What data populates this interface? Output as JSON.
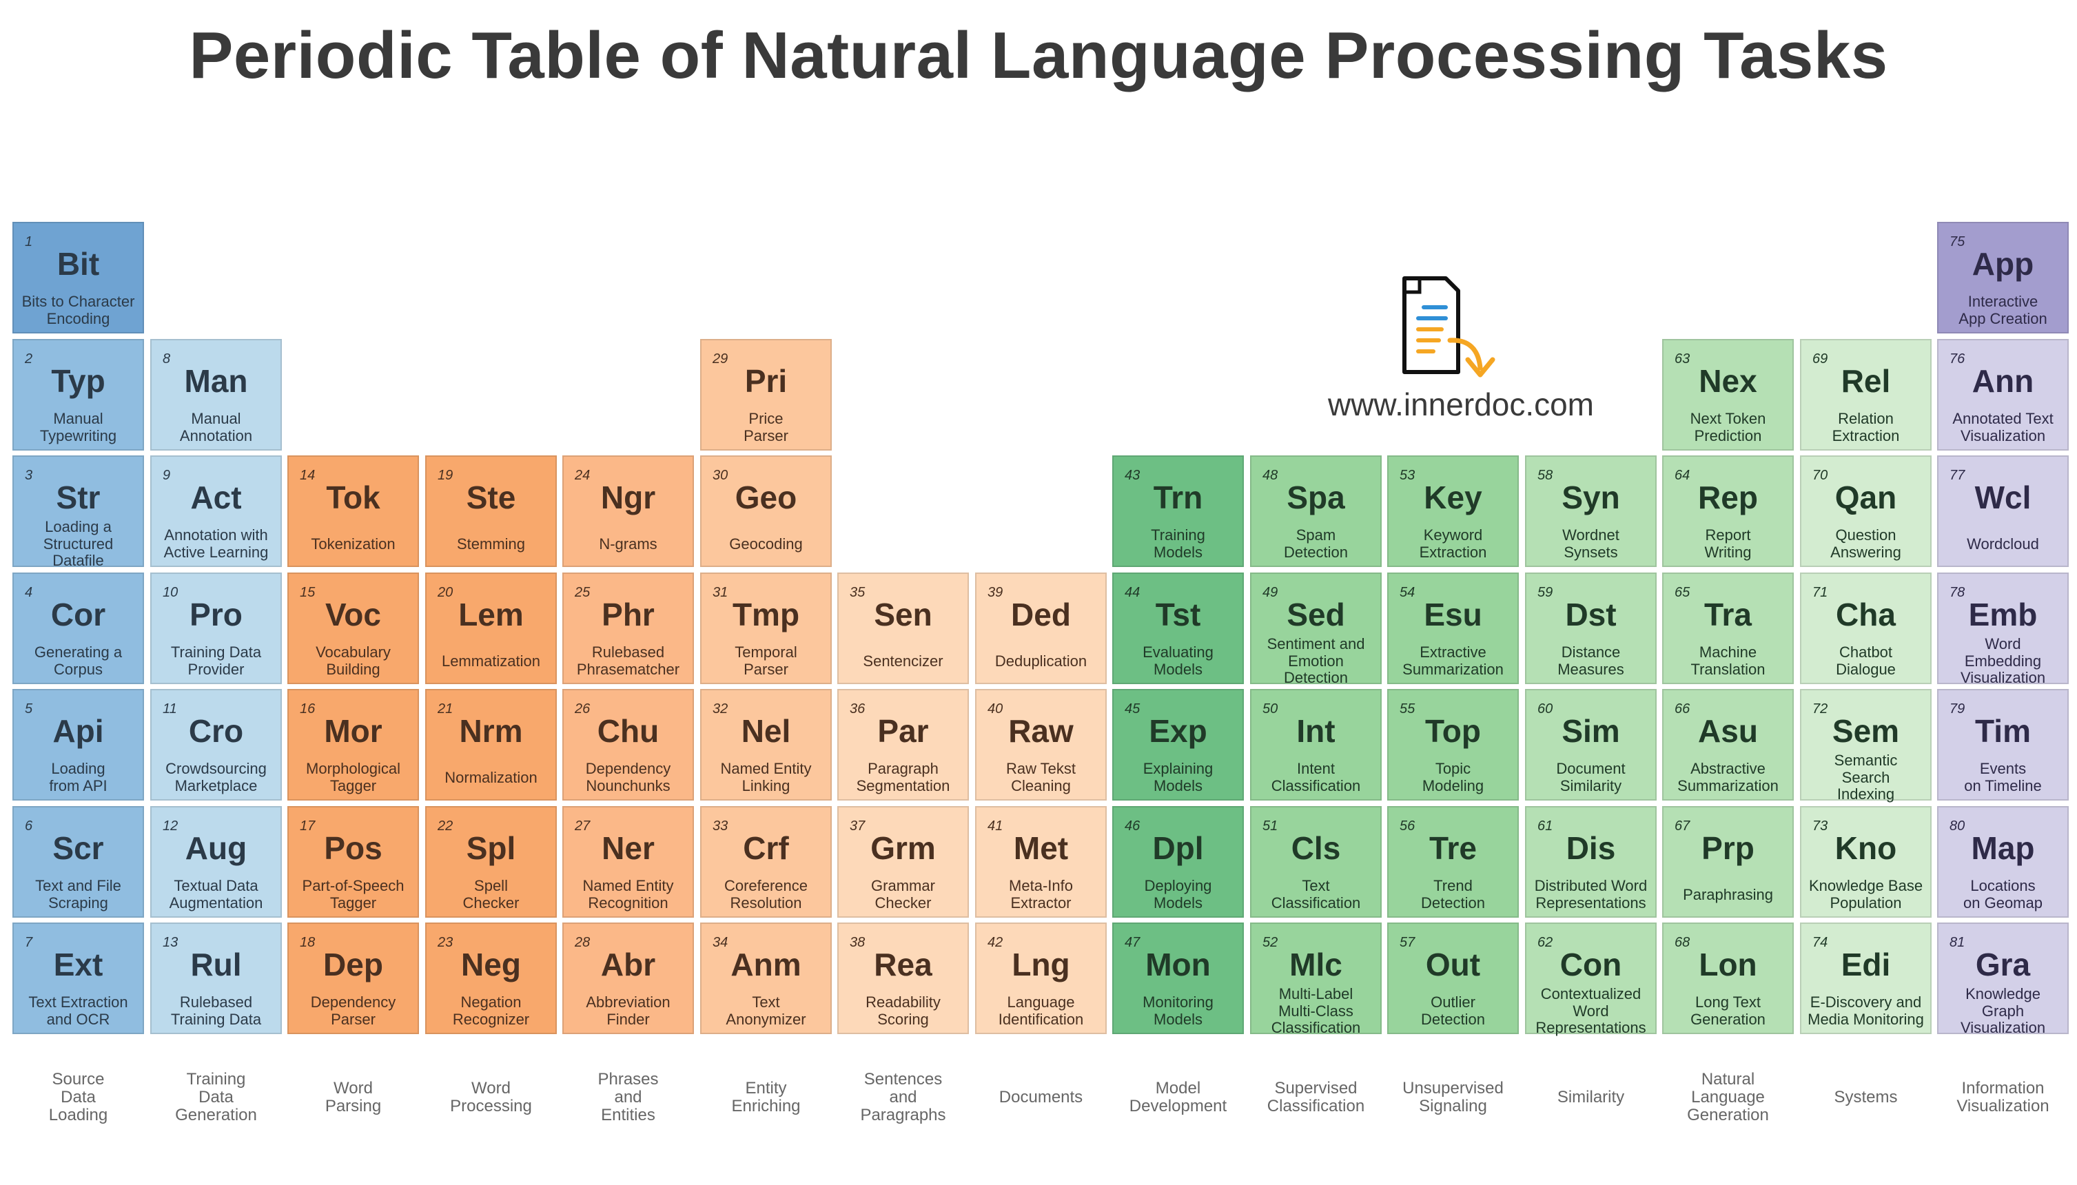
{
  "title": "Periodic Table of Natural Language Processing Tasks",
  "website": "www.innerdoc.com",
  "groups": [
    {
      "label": "Source\nData\nLoading"
    },
    {
      "label": "Training\nData\nGeneration"
    },
    {
      "label": "Word\nParsing"
    },
    {
      "label": "Word\nProcessing"
    },
    {
      "label": "Phrases\nand\nEntities"
    },
    {
      "label": "Entity\nEnriching"
    },
    {
      "label": "Sentences\nand\nParagraphs"
    },
    {
      "label": "Documents"
    },
    {
      "label": "Model\nDevelopment"
    },
    {
      "label": "Supervised\nClassification"
    },
    {
      "label": "Unsupervised\nSignaling"
    },
    {
      "label": "Similarity"
    },
    {
      "label": "Natural\nLanguage\nGeneration"
    },
    {
      "label": "Systems"
    },
    {
      "label": "Information\nVisualization"
    }
  ],
  "elements": [
    {
      "num": "1",
      "sym": "Bit",
      "name": "Bits to Character\nEncoding",
      "col": 0,
      "row": 0,
      "bg": "#6fa3d2",
      "fg": "#2b3a48"
    },
    {
      "num": "2",
      "sym": "Typ",
      "name": "Manual\nTypewriting",
      "col": 0,
      "row": 1,
      "bg": "#90bde0",
      "fg": "#2b3a48"
    },
    {
      "num": "3",
      "sym": "Str",
      "name": "Loading a\nStructured\nDatafile",
      "col": 0,
      "row": 2,
      "bg": "#90bde0",
      "fg": "#2b3a48"
    },
    {
      "num": "4",
      "sym": "Cor",
      "name": "Generating a\nCorpus",
      "col": 0,
      "row": 3,
      "bg": "#90bde0",
      "fg": "#2b3a48"
    },
    {
      "num": "5",
      "sym": "Api",
      "name": "Loading\nfrom API",
      "col": 0,
      "row": 4,
      "bg": "#90bde0",
      "fg": "#2b3a48"
    },
    {
      "num": "6",
      "sym": "Scr",
      "name": "Text and File\nScraping",
      "col": 0,
      "row": 5,
      "bg": "#90bde0",
      "fg": "#2b3a48"
    },
    {
      "num": "7",
      "sym": "Ext",
      "name": "Text Extraction\nand OCR",
      "col": 0,
      "row": 6,
      "bg": "#90bde0",
      "fg": "#2b3a48"
    },
    {
      "num": "8",
      "sym": "Man",
      "name": "Manual\nAnnotation",
      "col": 1,
      "row": 1,
      "bg": "#bcdaec",
      "fg": "#2b3a48"
    },
    {
      "num": "9",
      "sym": "Act",
      "name": "Annotation with\nActive Learning",
      "col": 1,
      "row": 2,
      "bg": "#bcdaec",
      "fg": "#2b3a48"
    },
    {
      "num": "10",
      "sym": "Pro",
      "name": "Training Data\nProvider",
      "col": 1,
      "row": 3,
      "bg": "#bcdaec",
      "fg": "#2b3a48"
    },
    {
      "num": "11",
      "sym": "Cro",
      "name": "Crowdsourcing\nMarketplace",
      "col": 1,
      "row": 4,
      "bg": "#bcdaec",
      "fg": "#2b3a48"
    },
    {
      "num": "12",
      "sym": "Aug",
      "name": "Textual Data\nAugmentation",
      "col": 1,
      "row": 5,
      "bg": "#bcdaec",
      "fg": "#2b3a48"
    },
    {
      "num": "13",
      "sym": "Rul",
      "name": "Rulebased\nTraining Data",
      "col": 1,
      "row": 6,
      "bg": "#bcdaec",
      "fg": "#2b3a48"
    },
    {
      "num": "14",
      "sym": "Tok",
      "name": "Tokenization",
      "col": 2,
      "row": 2,
      "bg": "#f8a86c",
      "fg": "#4a3020"
    },
    {
      "num": "15",
      "sym": "Voc",
      "name": "Vocabulary\nBuilding",
      "col": 2,
      "row": 3,
      "bg": "#f8a86c",
      "fg": "#4a3020"
    },
    {
      "num": "16",
      "sym": "Mor",
      "name": "Morphological\nTagger",
      "col": 2,
      "row": 4,
      "bg": "#f8a86c",
      "fg": "#4a3020"
    },
    {
      "num": "17",
      "sym": "Pos",
      "name": "Part-of-Speech\nTagger",
      "col": 2,
      "row": 5,
      "bg": "#f8a86c",
      "fg": "#4a3020"
    },
    {
      "num": "18",
      "sym": "Dep",
      "name": "Dependency\nParser",
      "col": 2,
      "row": 6,
      "bg": "#f8a86c",
      "fg": "#4a3020"
    },
    {
      "num": "19",
      "sym": "Ste",
      "name": "Stemming",
      "col": 3,
      "row": 2,
      "bg": "#f8a86c",
      "fg": "#4a3020"
    },
    {
      "num": "20",
      "sym": "Lem",
      "name": "Lemmatization",
      "col": 3,
      "row": 3,
      "bg": "#f8a86c",
      "fg": "#4a3020"
    },
    {
      "num": "21",
      "sym": "Nrm",
      "name": "Normalization",
      "col": 3,
      "row": 4,
      "bg": "#f8a86c",
      "fg": "#4a3020"
    },
    {
      "num": "22",
      "sym": "Spl",
      "name": "Spell\nChecker",
      "col": 3,
      "row": 5,
      "bg": "#f8a86c",
      "fg": "#4a3020"
    },
    {
      "num": "23",
      "sym": "Neg",
      "name": "Negation\nRecognizer",
      "col": 3,
      "row": 6,
      "bg": "#f8a86c",
      "fg": "#4a3020"
    },
    {
      "num": "24",
      "sym": "Ngr",
      "name": "N-grams",
      "col": 4,
      "row": 2,
      "bg": "#fbb888",
      "fg": "#4a3020"
    },
    {
      "num": "25",
      "sym": "Phr",
      "name": "Rulebased\nPhrasematcher",
      "col": 4,
      "row": 3,
      "bg": "#fbb888",
      "fg": "#4a3020"
    },
    {
      "num": "26",
      "sym": "Chu",
      "name": "Dependency\nNounchunks",
      "col": 4,
      "row": 4,
      "bg": "#fbb888",
      "fg": "#4a3020"
    },
    {
      "num": "27",
      "sym": "Ner",
      "name": "Named Entity\nRecognition",
      "col": 4,
      "row": 5,
      "bg": "#fbb888",
      "fg": "#4a3020"
    },
    {
      "num": "28",
      "sym": "Abr",
      "name": "Abbreviation\nFinder",
      "col": 4,
      "row": 6,
      "bg": "#fbb888",
      "fg": "#4a3020"
    },
    {
      "num": "29",
      "sym": "Pri",
      "name": "Price\nParser",
      "col": 5,
      "row": 1,
      "bg": "#fcc79d",
      "fg": "#4a3020"
    },
    {
      "num": "30",
      "sym": "Geo",
      "name": "Geocoding",
      "col": 5,
      "row": 2,
      "bg": "#fcc79d",
      "fg": "#4a3020"
    },
    {
      "num": "31",
      "sym": "Tmp",
      "name": "Temporal\nParser",
      "col": 5,
      "row": 3,
      "bg": "#fcc79d",
      "fg": "#4a3020"
    },
    {
      "num": "32",
      "sym": "Nel",
      "name": "Named Entity\nLinking",
      "col": 5,
      "row": 4,
      "bg": "#fcc79d",
      "fg": "#4a3020"
    },
    {
      "num": "33",
      "sym": "Crf",
      "name": "Coreference\nResolution",
      "col": 5,
      "row": 5,
      "bg": "#fcc79d",
      "fg": "#4a3020"
    },
    {
      "num": "34",
      "sym": "Anm",
      "name": "Text\nAnonymizer",
      "col": 5,
      "row": 6,
      "bg": "#fcc79d",
      "fg": "#4a3020"
    },
    {
      "num": "35",
      "sym": "Sen",
      "name": "Sentencizer",
      "col": 6,
      "row": 3,
      "bg": "#fdd9b9",
      "fg": "#4a3020"
    },
    {
      "num": "36",
      "sym": "Par",
      "name": "Paragraph\nSegmentation",
      "col": 6,
      "row": 4,
      "bg": "#fdd9b9",
      "fg": "#4a3020"
    },
    {
      "num": "37",
      "sym": "Grm",
      "name": "Grammar\nChecker",
      "col": 6,
      "row": 5,
      "bg": "#fdd9b9",
      "fg": "#4a3020"
    },
    {
      "num": "38",
      "sym": "Rea",
      "name": "Readability\nScoring",
      "col": 6,
      "row": 6,
      "bg": "#fdd9b9",
      "fg": "#4a3020"
    },
    {
      "num": "39",
      "sym": "Ded",
      "name": "Deduplication",
      "col": 7,
      "row": 3,
      "bg": "#fdd9b9",
      "fg": "#4a3020"
    },
    {
      "num": "40",
      "sym": "Raw",
      "name": "Raw Tekst\nCleaning",
      "col": 7,
      "row": 4,
      "bg": "#fdd9b9",
      "fg": "#4a3020"
    },
    {
      "num": "41",
      "sym": "Met",
      "name": "Meta-Info\nExtractor",
      "col": 7,
      "row": 5,
      "bg": "#fdd9b9",
      "fg": "#4a3020"
    },
    {
      "num": "42",
      "sym": "Lng",
      "name": "Language\nIdentification",
      "col": 7,
      "row": 6,
      "bg": "#fdd9b9",
      "fg": "#4a3020"
    },
    {
      "num": "43",
      "sym": "Trn",
      "name": "Training\nModels",
      "col": 8,
      "row": 2,
      "bg": "#6dbf84",
      "fg": "#203a28"
    },
    {
      "num": "44",
      "sym": "Tst",
      "name": "Evaluating\nModels",
      "col": 8,
      "row": 3,
      "bg": "#6dbf84",
      "fg": "#203a28"
    },
    {
      "num": "45",
      "sym": "Exp",
      "name": "Explaining\nModels",
      "col": 8,
      "row": 4,
      "bg": "#6dbf84",
      "fg": "#203a28"
    },
    {
      "num": "46",
      "sym": "Dpl",
      "name": "Deploying\nModels",
      "col": 8,
      "row": 5,
      "bg": "#6dbf84",
      "fg": "#203a28"
    },
    {
      "num": "47",
      "sym": "Mon",
      "name": "Monitoring\nModels",
      "col": 8,
      "row": 6,
      "bg": "#6dbf84",
      "fg": "#203a28"
    },
    {
      "num": "48",
      "sym": "Spa",
      "name": "Spam\nDetection",
      "col": 9,
      "row": 2,
      "bg": "#98d49c",
      "fg": "#203a28"
    },
    {
      "num": "49",
      "sym": "Sed",
      "name": "Sentiment and\nEmotion\nDetection",
      "col": 9,
      "row": 3,
      "bg": "#98d49c",
      "fg": "#203a28"
    },
    {
      "num": "50",
      "sym": "Int",
      "name": "Intent\nClassification",
      "col": 9,
      "row": 4,
      "bg": "#98d49c",
      "fg": "#203a28"
    },
    {
      "num": "51",
      "sym": "Cls",
      "name": "Text\nClassification",
      "col": 9,
      "row": 5,
      "bg": "#98d49c",
      "fg": "#203a28"
    },
    {
      "num": "52",
      "sym": "Mlc",
      "name": "Multi-Label\nMulti-Class\nClassification",
      "col": 9,
      "row": 6,
      "bg": "#98d49c",
      "fg": "#203a28"
    },
    {
      "num": "53",
      "sym": "Key",
      "name": "Keyword\nExtraction",
      "col": 10,
      "row": 2,
      "bg": "#98d49c",
      "fg": "#203a28"
    },
    {
      "num": "54",
      "sym": "Esu",
      "name": "Extractive\nSummarization",
      "col": 10,
      "row": 3,
      "bg": "#98d49c",
      "fg": "#203a28"
    },
    {
      "num": "55",
      "sym": "Top",
      "name": "Topic\nModeling",
      "col": 10,
      "row": 4,
      "bg": "#98d49c",
      "fg": "#203a28"
    },
    {
      "num": "56",
      "sym": "Tre",
      "name": "Trend\nDetection",
      "col": 10,
      "row": 5,
      "bg": "#98d49c",
      "fg": "#203a28"
    },
    {
      "num": "57",
      "sym": "Out",
      "name": "Outlier\nDetection",
      "col": 10,
      "row": 6,
      "bg": "#98d49c",
      "fg": "#203a28"
    },
    {
      "num": "58",
      "sym": "Syn",
      "name": "Wordnet\nSynsets",
      "col": 11,
      "row": 2,
      "bg": "#b5e0b4",
      "fg": "#203a28"
    },
    {
      "num": "59",
      "sym": "Dst",
      "name": "Distance\nMeasures",
      "col": 11,
      "row": 3,
      "bg": "#b5e0b4",
      "fg": "#203a28"
    },
    {
      "num": "60",
      "sym": "Sim",
      "name": "Document\nSimilarity",
      "col": 11,
      "row": 4,
      "bg": "#b5e0b4",
      "fg": "#203a28"
    },
    {
      "num": "61",
      "sym": "Dis",
      "name": "Distributed Word\nRepresentations",
      "col": 11,
      "row": 5,
      "bg": "#b5e0b4",
      "fg": "#203a28"
    },
    {
      "num": "62",
      "sym": "Con",
      "name": "Contextualized\nWord\nRepresentations",
      "col": 11,
      "row": 6,
      "bg": "#b5e0b4",
      "fg": "#203a28"
    },
    {
      "num": "63",
      "sym": "Nex",
      "name": "Next Token\nPrediction",
      "col": 12,
      "row": 1,
      "bg": "#b5e0b4",
      "fg": "#203a28"
    },
    {
      "num": "64",
      "sym": "Rep",
      "name": "Report\nWriting",
      "col": 12,
      "row": 2,
      "bg": "#b5e0b4",
      "fg": "#203a28"
    },
    {
      "num": "65",
      "sym": "Tra",
      "name": "Machine\nTranslation",
      "col": 12,
      "row": 3,
      "bg": "#b5e0b4",
      "fg": "#203a28"
    },
    {
      "num": "66",
      "sym": "Asu",
      "name": "Abstractive\nSummarization",
      "col": 12,
      "row": 4,
      "bg": "#b5e0b4",
      "fg": "#203a28"
    },
    {
      "num": "67",
      "sym": "Prp",
      "name": "Paraphrasing",
      "col": 12,
      "row": 5,
      "bg": "#b5e0b4",
      "fg": "#203a28"
    },
    {
      "num": "68",
      "sym": "Lon",
      "name": "Long Text\nGeneration",
      "col": 12,
      "row": 6,
      "bg": "#b5e0b4",
      "fg": "#203a28"
    },
    {
      "num": "69",
      "sym": "Rel",
      "name": "Relation\nExtraction",
      "col": 13,
      "row": 1,
      "bg": "#d3ecd0",
      "fg": "#203a28"
    },
    {
      "num": "70",
      "sym": "Qan",
      "name": "Question\nAnswering",
      "col": 13,
      "row": 2,
      "bg": "#d3ecd0",
      "fg": "#203a28"
    },
    {
      "num": "71",
      "sym": "Cha",
      "name": "Chatbot\nDialogue",
      "col": 13,
      "row": 3,
      "bg": "#d3ecd0",
      "fg": "#203a28"
    },
    {
      "num": "72",
      "sym": "Sem",
      "name": "Semantic\nSearch\nIndexing",
      "col": 13,
      "row": 4,
      "bg": "#d3ecd0",
      "fg": "#203a28"
    },
    {
      "num": "73",
      "sym": "Kno",
      "name": "Knowledge Base\nPopulation",
      "col": 13,
      "row": 5,
      "bg": "#d3ecd0",
      "fg": "#203a28"
    },
    {
      "num": "74",
      "sym": "Edi",
      "name": "E-Discovery and\nMedia Monitoring",
      "col": 13,
      "row": 6,
      "bg": "#d3ecd0",
      "fg": "#203a28"
    },
    {
      "num": "75",
      "sym": "App",
      "name": "Interactive\nApp Creation",
      "col": 14,
      "row": 0,
      "bg": "#a39dce",
      "fg": "#2e2a48"
    },
    {
      "num": "76",
      "sym": "Ann",
      "name": "Annotated Text\nVisualization",
      "col": 14,
      "row": 1,
      "bg": "#d3d0e8",
      "fg": "#2e2a48"
    },
    {
      "num": "77",
      "sym": "Wcl",
      "name": "Wordcloud",
      "col": 14,
      "row": 2,
      "bg": "#d3d0e8",
      "fg": "#2e2a48"
    },
    {
      "num": "78",
      "sym": "Emb",
      "name": "Word\nEmbedding\nVisualization",
      "col": 14,
      "row": 3,
      "bg": "#d3d0e8",
      "fg": "#2e2a48"
    },
    {
      "num": "79",
      "sym": "Tim",
      "name": "Events\non Timeline",
      "col": 14,
      "row": 4,
      "bg": "#d3d0e8",
      "fg": "#2e2a48"
    },
    {
      "num": "80",
      "sym": "Map",
      "name": "Locations\non Geomap",
      "col": 14,
      "row": 5,
      "bg": "#d3d0e8",
      "fg": "#2e2a48"
    },
    {
      "num": "81",
      "sym": "Gra",
      "name": "Knowledge\nGraph\nVisualization",
      "col": 14,
      "row": 6,
      "bg": "#d3d0e8",
      "fg": "#2e2a48"
    }
  ]
}
